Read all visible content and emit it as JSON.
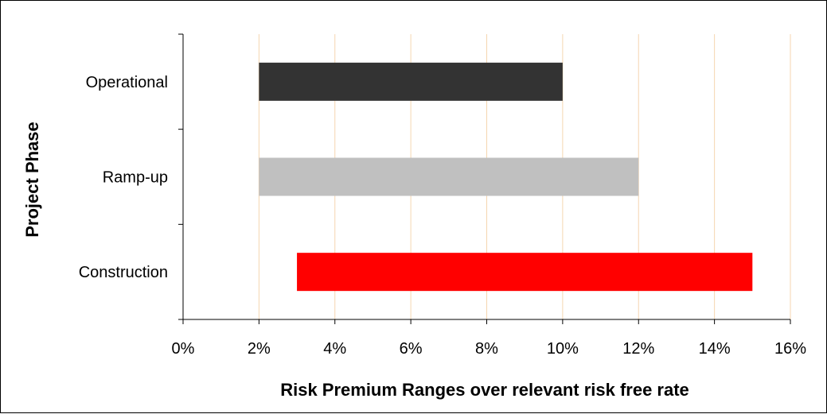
{
  "chart_data": {
    "type": "bar",
    "orientation": "horizontal",
    "bar_kind": "floating-range",
    "title": "",
    "xlabel": "Risk Premium Ranges over relevant risk free rate",
    "ylabel": "Project Phase",
    "xlim": [
      0,
      16
    ],
    "x_ticks": [
      0,
      2,
      4,
      6,
      8,
      10,
      12,
      14,
      16
    ],
    "x_tick_labels": [
      "0%",
      "2%",
      "4%",
      "6%",
      "8%",
      "10%",
      "12%",
      "14%",
      "16%"
    ],
    "x_unit": "%",
    "grid": "vertical gridlines",
    "gridline_color": "#f5d6b0",
    "legend": "none",
    "categories": [
      "Operational",
      "Ramp-up",
      "Construction"
    ],
    "ranges": [
      {
        "category": "Operational",
        "low": 2,
        "high": 10,
        "color": "#333333"
      },
      {
        "category": "Ramp-up",
        "low": 2,
        "high": 12,
        "color": "#c0c0c0"
      },
      {
        "category": "Construction",
        "low": 3,
        "high": 15,
        "color": "#ff0000"
      }
    ]
  }
}
